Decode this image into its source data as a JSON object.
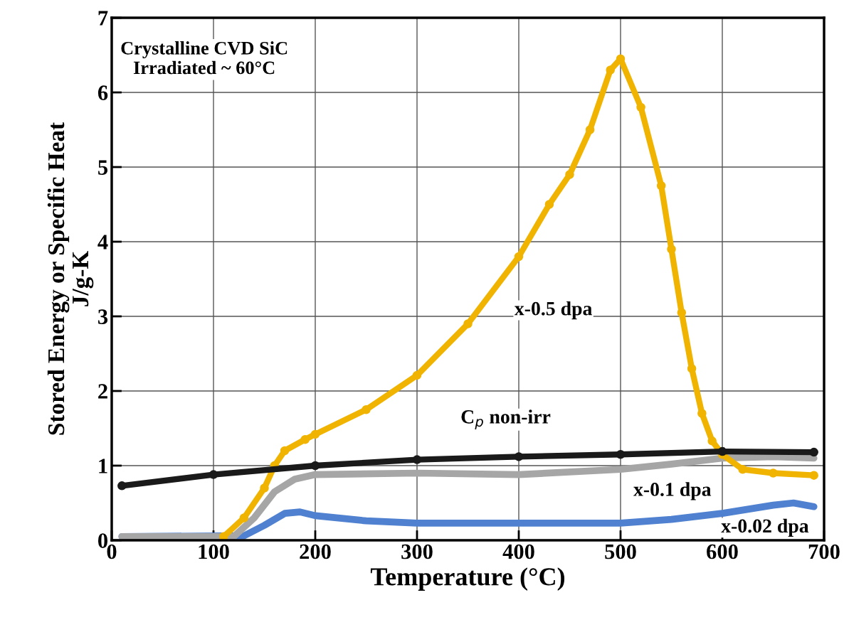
{
  "chart_data": {
    "type": "line",
    "xlabel": "Temperature (°C)",
    "ylabel": "Stored Energy or Specific Heat\nJ/g-K",
    "xlim": [
      0,
      700
    ],
    "xticks": [
      0,
      100,
      200,
      300,
      400,
      500,
      600,
      700
    ],
    "ylim": [
      0,
      7
    ],
    "yticks": [
      0,
      1,
      2,
      3,
      4,
      5,
      6,
      7
    ],
    "grid": true,
    "legend": false,
    "series": [
      {
        "name": "x-0.02 dpa",
        "color": "#4f81d0",
        "marker": "none",
        "x": [
          10,
          130,
          150,
          170,
          185,
          200,
          250,
          300,
          400,
          500,
          550,
          600,
          650,
          670,
          690
        ],
        "values": [
          0.05,
          0.06,
          0.2,
          0.36,
          0.38,
          0.33,
          0.26,
          0.23,
          0.23,
          0.23,
          0.28,
          0.36,
          0.47,
          0.5,
          0.45
        ]
      },
      {
        "name": "x-0.1 dpa",
        "color": "#a6a6a6",
        "marker": "none",
        "x": [
          10,
          120,
          140,
          160,
          180,
          200,
          300,
          400,
          500,
          550,
          600,
          650,
          690
        ],
        "values": [
          0.05,
          0.05,
          0.3,
          0.65,
          0.82,
          0.88,
          0.9,
          0.88,
          0.95,
          1.02,
          1.1,
          1.12,
          1.1
        ]
      },
      {
        "name": "x-0.5 dpa",
        "color": "#f0b400",
        "marker": "circle",
        "x": [
          110,
          130,
          150,
          160,
          170,
          190,
          200,
          250,
          300,
          350,
          400,
          430,
          450,
          470,
          490,
          500,
          520,
          540,
          550,
          560,
          570,
          580,
          590,
          600,
          620,
          650,
          690
        ],
        "values": [
          0.05,
          0.3,
          0.7,
          1.0,
          1.2,
          1.35,
          1.42,
          1.75,
          2.21,
          2.9,
          3.8,
          4.5,
          4.9,
          5.5,
          6.3,
          6.45,
          5.8,
          4.75,
          3.9,
          3.05,
          2.3,
          1.7,
          1.33,
          1.15,
          0.95,
          0.9,
          0.87
        ]
      },
      {
        "name": "C$_{p}$ non-irr",
        "color": "#1a1a1a",
        "marker": "circle",
        "x": [
          10,
          100,
          200,
          300,
          400,
          500,
          600,
          690
        ],
        "values": [
          0.73,
          0.88,
          1.0,
          1.08,
          1.12,
          1.15,
          1.19,
          1.18
        ]
      }
    ],
    "annotations": [
      "Crystalline CVD SiC\nIrradiated ~ 60°C"
    ]
  }
}
